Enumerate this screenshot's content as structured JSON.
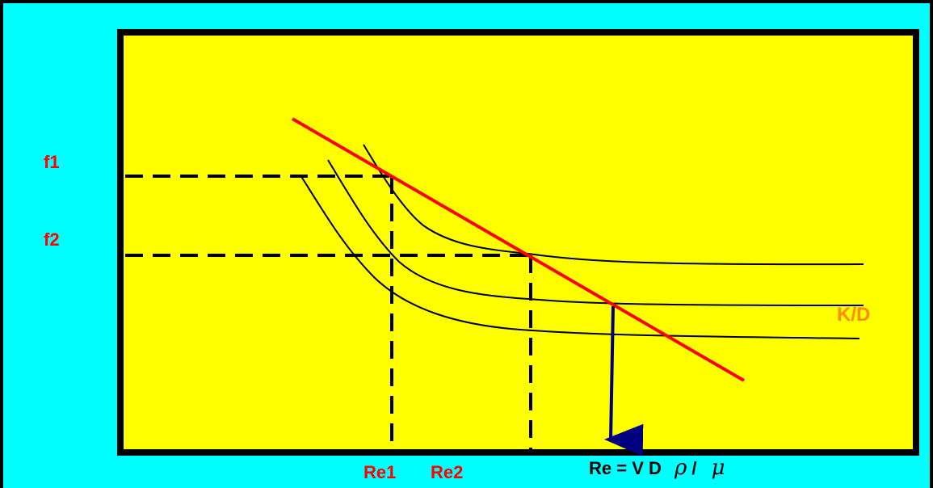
{
  "colors": {
    "background": "#00FFFF",
    "plot_fill": "#FFFF00",
    "plot_border": "#000000",
    "red_line": "#FF0000",
    "curves": "#000000",
    "arrow": "#000080",
    "label_red": "#FF0000",
    "label_orange": "#FF8C00"
  },
  "labels": {
    "f1": "f1",
    "f2": "f2",
    "kd": "K/D",
    "re1": "Re1",
    "re2": "Re2",
    "re_formula_text": "Re = V D",
    "rho": "ρ",
    "slash": "/",
    "mu": "μ"
  },
  "elements": {
    "curves": [
      "curve-upper",
      "curve-middle",
      "curve-lower"
    ],
    "guides": [
      "f1-dashed-guide",
      "f2-dashed-guide",
      "re1-dashed-guide",
      "re2-dashed-guide"
    ],
    "red_line": "red-operating-line",
    "arrow": "re-result-arrow"
  }
}
